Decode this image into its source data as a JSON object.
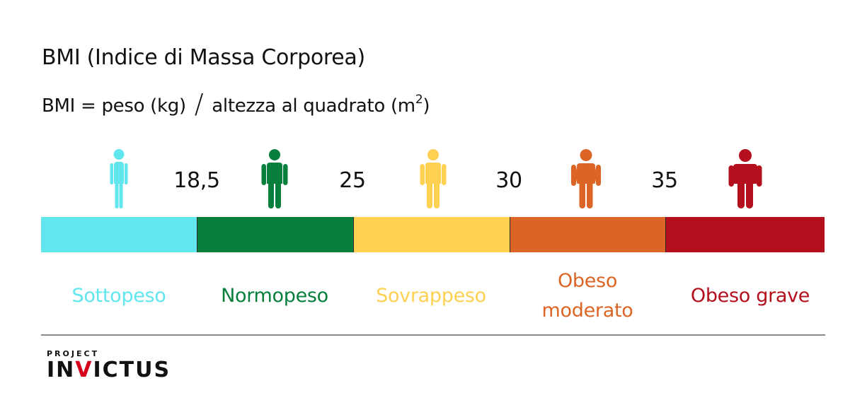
{
  "title": "BMI (Indice di Massa Corporea)",
  "formula": {
    "left": "BMI = peso (kg)",
    "slash": "/",
    "right": "altezza al quadrato (m",
    "superscript": "2",
    "close": ")"
  },
  "thresholds": [
    "18,5",
    "25",
    "30",
    "35"
  ],
  "categories": [
    {
      "label": "Sottopeso",
      "color": "#62e6ee",
      "figure": "thin-person-icon",
      "build": 0
    },
    {
      "label": "Normopeso",
      "color": "#06803c",
      "figure": "normal-person-icon",
      "build": 1
    },
    {
      "label": "Sovrappeso",
      "color": "#ffd152",
      "figure": "overweight-person-icon",
      "build": 1
    },
    {
      "label": "Obeso moderato",
      "label_lines": [
        "Obeso",
        "moderato"
      ],
      "color": "#dc6526",
      "figure": "obese-person-icon",
      "build": 2
    },
    {
      "label": "Obeso grave",
      "color": "#b40f1c",
      "figure": "severely-obese-person-icon",
      "build": 3
    }
  ],
  "logo": {
    "top": "PROJECT",
    "main_before": "IN",
    "main_accent": "V",
    "main_after": "ICTUS"
  }
}
